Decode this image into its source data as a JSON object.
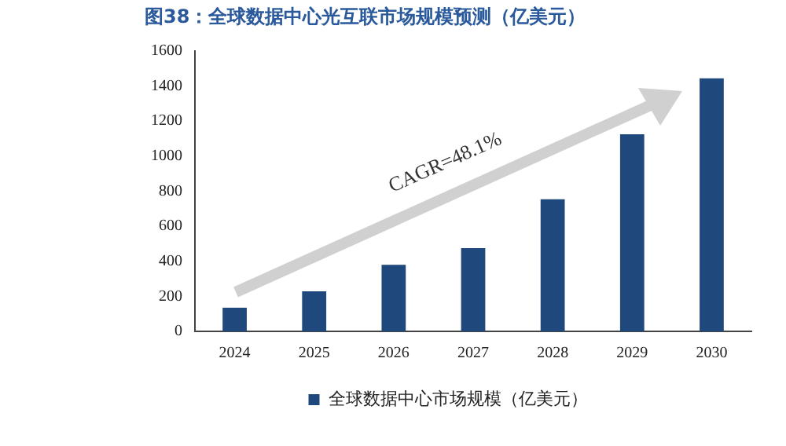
{
  "chart_data": {
    "type": "bar",
    "title": "图38：全球数据中心光互联市场规模预测（亿美元）",
    "categories": [
      "2024",
      "2025",
      "2026",
      "2027",
      "2028",
      "2029",
      "2030"
    ],
    "series": [
      {
        "name": "全球数据中心市场规模（亿美元）",
        "color": "#1f497d",
        "values": [
          135,
          228,
          380,
          475,
          754,
          1124,
          1443
        ]
      }
    ],
    "ylim": [
      0,
      1600
    ],
    "yticks": [
      0,
      200,
      400,
      600,
      800,
      1000,
      1200,
      1400,
      1600
    ],
    "grid": false,
    "legend": "bottom",
    "annotations": [
      "CAGR=48.1%"
    ]
  }
}
